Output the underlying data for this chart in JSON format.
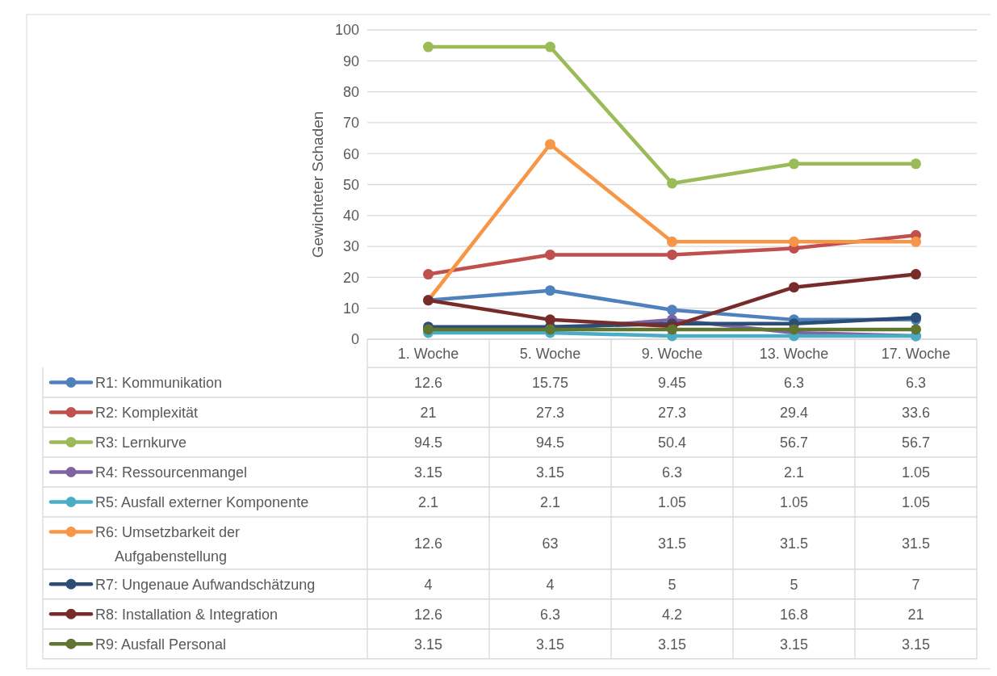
{
  "chart_data": {
    "type": "line",
    "ylabel": "Gewichteter Schaden",
    "categories": [
      "1. Woche",
      "5. Woche",
      "9. Woche",
      "13. Woche",
      "17. Woche"
    ],
    "series": [
      {
        "name": "R1: Kommunikation",
        "color": "#4f81bd",
        "values": [
          12.6,
          15.75,
          9.45,
          6.3,
          6.3
        ]
      },
      {
        "name": "R2: Komplexität",
        "color": "#c0504d",
        "values": [
          21,
          27.3,
          27.3,
          29.4,
          33.6
        ]
      },
      {
        "name": "R3: Lernkurve",
        "color": "#9bbb59",
        "values": [
          94.5,
          94.5,
          50.4,
          56.7,
          56.7
        ]
      },
      {
        "name": "R4: Ressourcenmangel",
        "color": "#8064a2",
        "values": [
          3.15,
          3.15,
          6.3,
          2.1,
          1.05
        ]
      },
      {
        "name": "R5: Ausfall externer Komponente",
        "color": "#4bacc6",
        "values": [
          2.1,
          2.1,
          1.05,
          1.05,
          1.05
        ]
      },
      {
        "name": "R6: Umsetzbarkeit der Aufgabenstellung",
        "color": "#f79646",
        "values": [
          12.6,
          63,
          31.5,
          31.5,
          31.5
        ]
      },
      {
        "name": "R7: Ungenaue Aufwandschätzung",
        "color": "#2c4d75",
        "values": [
          4,
          4,
          5,
          5,
          7
        ]
      },
      {
        "name": "R8: Installation & Integration",
        "color": "#772c2a",
        "values": [
          12.6,
          6.3,
          4.2,
          16.8,
          21
        ]
      },
      {
        "name": "R9: Ausfall Personal",
        "color": "#5f7530",
        "values": [
          3.15,
          3.15,
          3.15,
          3.15,
          3.15
        ]
      }
    ],
    "ylim": [
      0,
      100
    ],
    "yticks": [
      0,
      10,
      20,
      30,
      40,
      50,
      60,
      70,
      80,
      90,
      100
    ],
    "grid": "y",
    "marker": "circle",
    "line_style": "solid",
    "legend": "bottom",
    "data_labels": true
  }
}
